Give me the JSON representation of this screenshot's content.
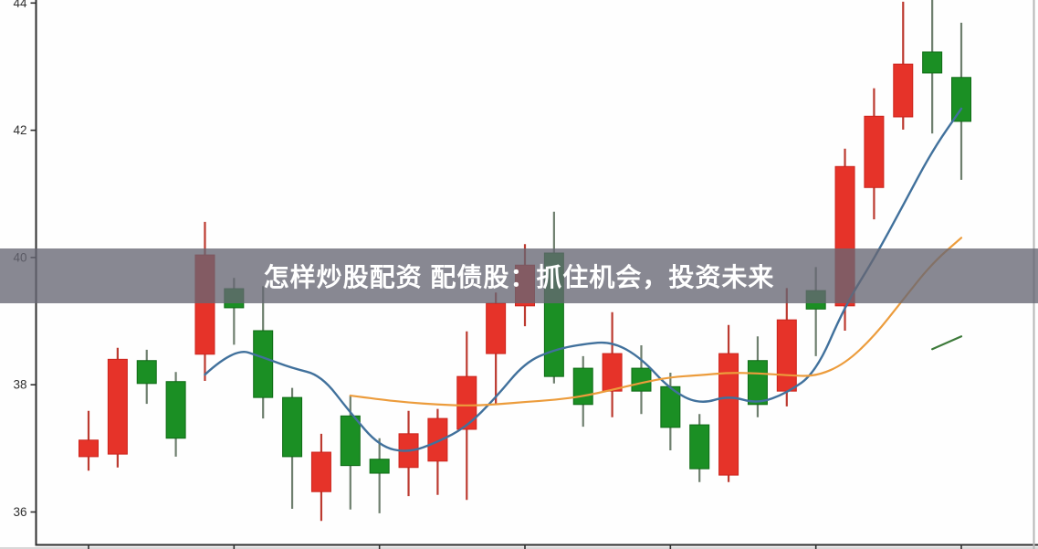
{
  "page": {
    "background": "#fcfcfc",
    "plot_background": "#fefefe"
  },
  "banner": {
    "title": "怎样炒股配资 配债股：抓住机会，投资未来",
    "bg_color": "rgba(103,103,115,0.78)",
    "text_color": "#ffffff"
  },
  "axes": {
    "spine_color": "#2f2f2f",
    "tick_color": "#2f2f2f",
    "label_color": "#303030",
    "right_border_color": "#b7b7b7",
    "bottom_edge_color": "#d8d8d8"
  },
  "chart_data": {
    "type": "candlestick",
    "title": "",
    "xlabel": "",
    "ylabel": "",
    "y_ticks": [
      36,
      38,
      40,
      42,
      44
    ],
    "ylim": [
      35.55,
      44.07
    ],
    "x_tick_every": 5,
    "grid": false,
    "legend": "none",
    "colors": {
      "up_fill": "#1b8f24",
      "up_border": "#0e6b15",
      "up_wick": "#6e7f6e",
      "down_fill": "#e63329",
      "down_border": "#cc241c",
      "down_wick": "#bc3a30"
    },
    "candles_ohlc": [
      {
        "open": 37.13,
        "high": 37.59,
        "low": 36.65,
        "close": 36.87
      },
      {
        "open": 38.4,
        "high": 38.58,
        "low": 36.7,
        "close": 36.91
      },
      {
        "open": 38.02,
        "high": 38.55,
        "low": 37.7,
        "close": 38.38
      },
      {
        "open": 37.16,
        "high": 38.2,
        "low": 36.87,
        "close": 38.05
      },
      {
        "open": 40.04,
        "high": 40.56,
        "low": 38.06,
        "close": 38.48
      },
      {
        "open": 39.21,
        "high": 39.68,
        "low": 38.63,
        "close": 39.51
      },
      {
        "open": 37.8,
        "high": 39.55,
        "low": 37.47,
        "close": 38.85
      },
      {
        "open": 36.87,
        "high": 37.95,
        "low": 36.05,
        "close": 37.8
      },
      {
        "open": 36.94,
        "high": 37.23,
        "low": 35.86,
        "close": 36.32
      },
      {
        "open": 36.73,
        "high": 37.83,
        "low": 36.04,
        "close": 37.51
      },
      {
        "open": 36.61,
        "high": 37.16,
        "low": 35.98,
        "close": 36.83
      },
      {
        "open": 37.23,
        "high": 37.59,
        "low": 36.25,
        "close": 36.7
      },
      {
        "open": 37.47,
        "high": 37.62,
        "low": 36.27,
        "close": 36.8
      },
      {
        "open": 38.13,
        "high": 38.84,
        "low": 36.19,
        "close": 37.3
      },
      {
        "open": 39.28,
        "high": 39.45,
        "low": 37.69,
        "close": 38.49
      },
      {
        "open": 39.88,
        "high": 40.21,
        "low": 38.92,
        "close": 39.24
      },
      {
        "open": 38.13,
        "high": 40.72,
        "low": 38.02,
        "close": 40.07
      },
      {
        "open": 37.69,
        "high": 38.45,
        "low": 37.34,
        "close": 38.26
      },
      {
        "open": 38.49,
        "high": 39.14,
        "low": 37.49,
        "close": 37.9
      },
      {
        "open": 37.9,
        "high": 38.62,
        "low": 37.54,
        "close": 38.26
      },
      {
        "open": 37.33,
        "high": 38.19,
        "low": 36.97,
        "close": 37.97
      },
      {
        "open": 36.68,
        "high": 37.54,
        "low": 36.47,
        "close": 37.37
      },
      {
        "open": 38.49,
        "high": 38.94,
        "low": 36.47,
        "close": 36.58
      },
      {
        "open": 37.69,
        "high": 38.76,
        "low": 37.49,
        "close": 38.38
      },
      {
        "open": 39.02,
        "high": 39.52,
        "low": 37.66,
        "close": 37.9
      },
      {
        "open": 39.19,
        "high": 39.85,
        "low": 38.45,
        "close": 39.48
      },
      {
        "open": 41.43,
        "high": 41.71,
        "low": 38.85,
        "close": 39.24
      },
      {
        "open": 42.22,
        "high": 42.66,
        "low": 40.6,
        "close": 41.1
      },
      {
        "open": 43.04,
        "high": 44.02,
        "low": 42.01,
        "close": 42.21
      },
      {
        "open": 42.9,
        "high": 44.05,
        "low": 41.95,
        "close": 43.23
      },
      {
        "open": 42.14,
        "high": 43.69,
        "low": 41.22,
        "close": 42.83
      }
    ],
    "series": [
      {
        "id": "ma-blue",
        "color": "#41719c",
        "width": 2.4,
        "start_index": 4,
        "values": [
          38.16,
          38.58,
          38.43,
          38.26,
          38.15,
          37.56,
          37.03,
          36.93,
          37.1,
          37.34,
          37.8,
          38.35,
          38.55,
          38.64,
          38.68,
          38.42,
          37.92,
          37.69,
          37.83,
          37.7,
          37.87,
          38.19,
          39.24,
          39.98,
          40.82,
          41.68,
          42.34
        ]
      },
      {
        "id": "ma-orange",
        "color": "#ec9c3c",
        "width": 2.2,
        "start_index": 9,
        "values": [
          37.83,
          37.77,
          37.72,
          37.69,
          37.67,
          37.69,
          37.73,
          37.76,
          37.82,
          37.92,
          38.03,
          38.12,
          38.15,
          38.19,
          38.18,
          38.15,
          38.13,
          38.33,
          38.76,
          39.34,
          39.91,
          40.31
        ]
      },
      {
        "id": "ma-green",
        "color": "#3d7a3a",
        "width": 2.2,
        "start_index": 29,
        "values": [
          38.56,
          38.76
        ]
      }
    ]
  }
}
